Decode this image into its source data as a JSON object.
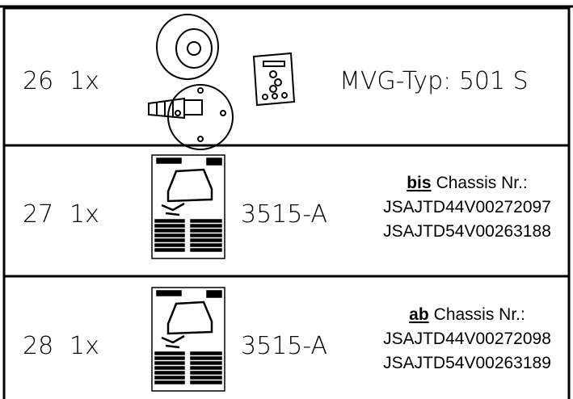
{
  "rows": [
    {
      "number": "26",
      "qty": "1x",
      "label": "MVG-Typ: 501 S"
    },
    {
      "number": "27",
      "qty": "1x",
      "code": "3515-A",
      "note": {
        "emphasis": "bis",
        "text": "Chassis Nr.:",
        "lines": [
          "JSAJTD44V00272097",
          "JSAJTD54V00263188"
        ]
      }
    },
    {
      "number": "28",
      "qty": "1x",
      "code": "3515-A",
      "note": {
        "emphasis": "ab",
        "text": "Chassis Nr.:",
        "lines": [
          "JSAJTD44V00272098",
          "JSAJTD54V00263189"
        ]
      }
    }
  ]
}
